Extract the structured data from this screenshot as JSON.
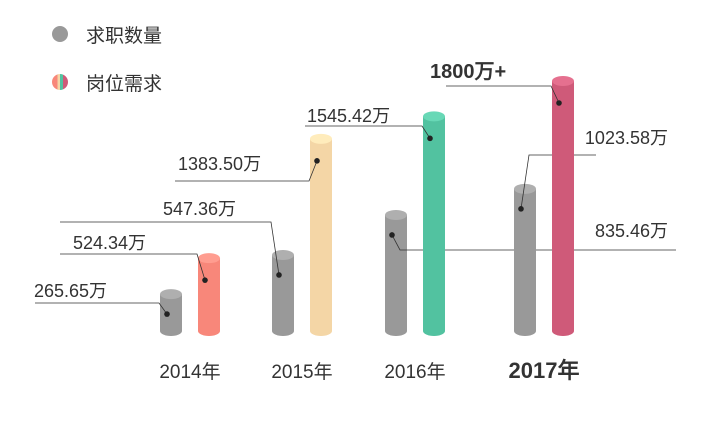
{
  "legend": {
    "demand_count_label": "求职数量",
    "job_positions_label": "岗位需求"
  },
  "colors": {
    "job_seekers": "#999999",
    "y2014": "#f8877a",
    "y2015": "#f4d6a6",
    "y2016": "#52c2a0",
    "y2017": "#cf5a79",
    "leader": "#333333",
    "text": "#333333"
  },
  "chart_data": {
    "type": "bar",
    "categories": [
      "2014年",
      "2015年",
      "2016年",
      "2017年"
    ],
    "series": [
      {
        "name": "求职数量",
        "values": [
          265.65,
          547.36,
          835.46,
          1023.58
        ],
        "labels": [
          "265.65万",
          "547.36万",
          "835.46万",
          "1023.58万"
        ]
      },
      {
        "name": "岗位需求",
        "values": [
          524.34,
          1383.5,
          1545.42,
          1800
        ],
        "labels": [
          "524.34万",
          "1383.50万",
          "1545.42万",
          "1800万+"
        ]
      }
    ],
    "highlight_category": "2017年",
    "legend": "top-left",
    "grid": false
  }
}
